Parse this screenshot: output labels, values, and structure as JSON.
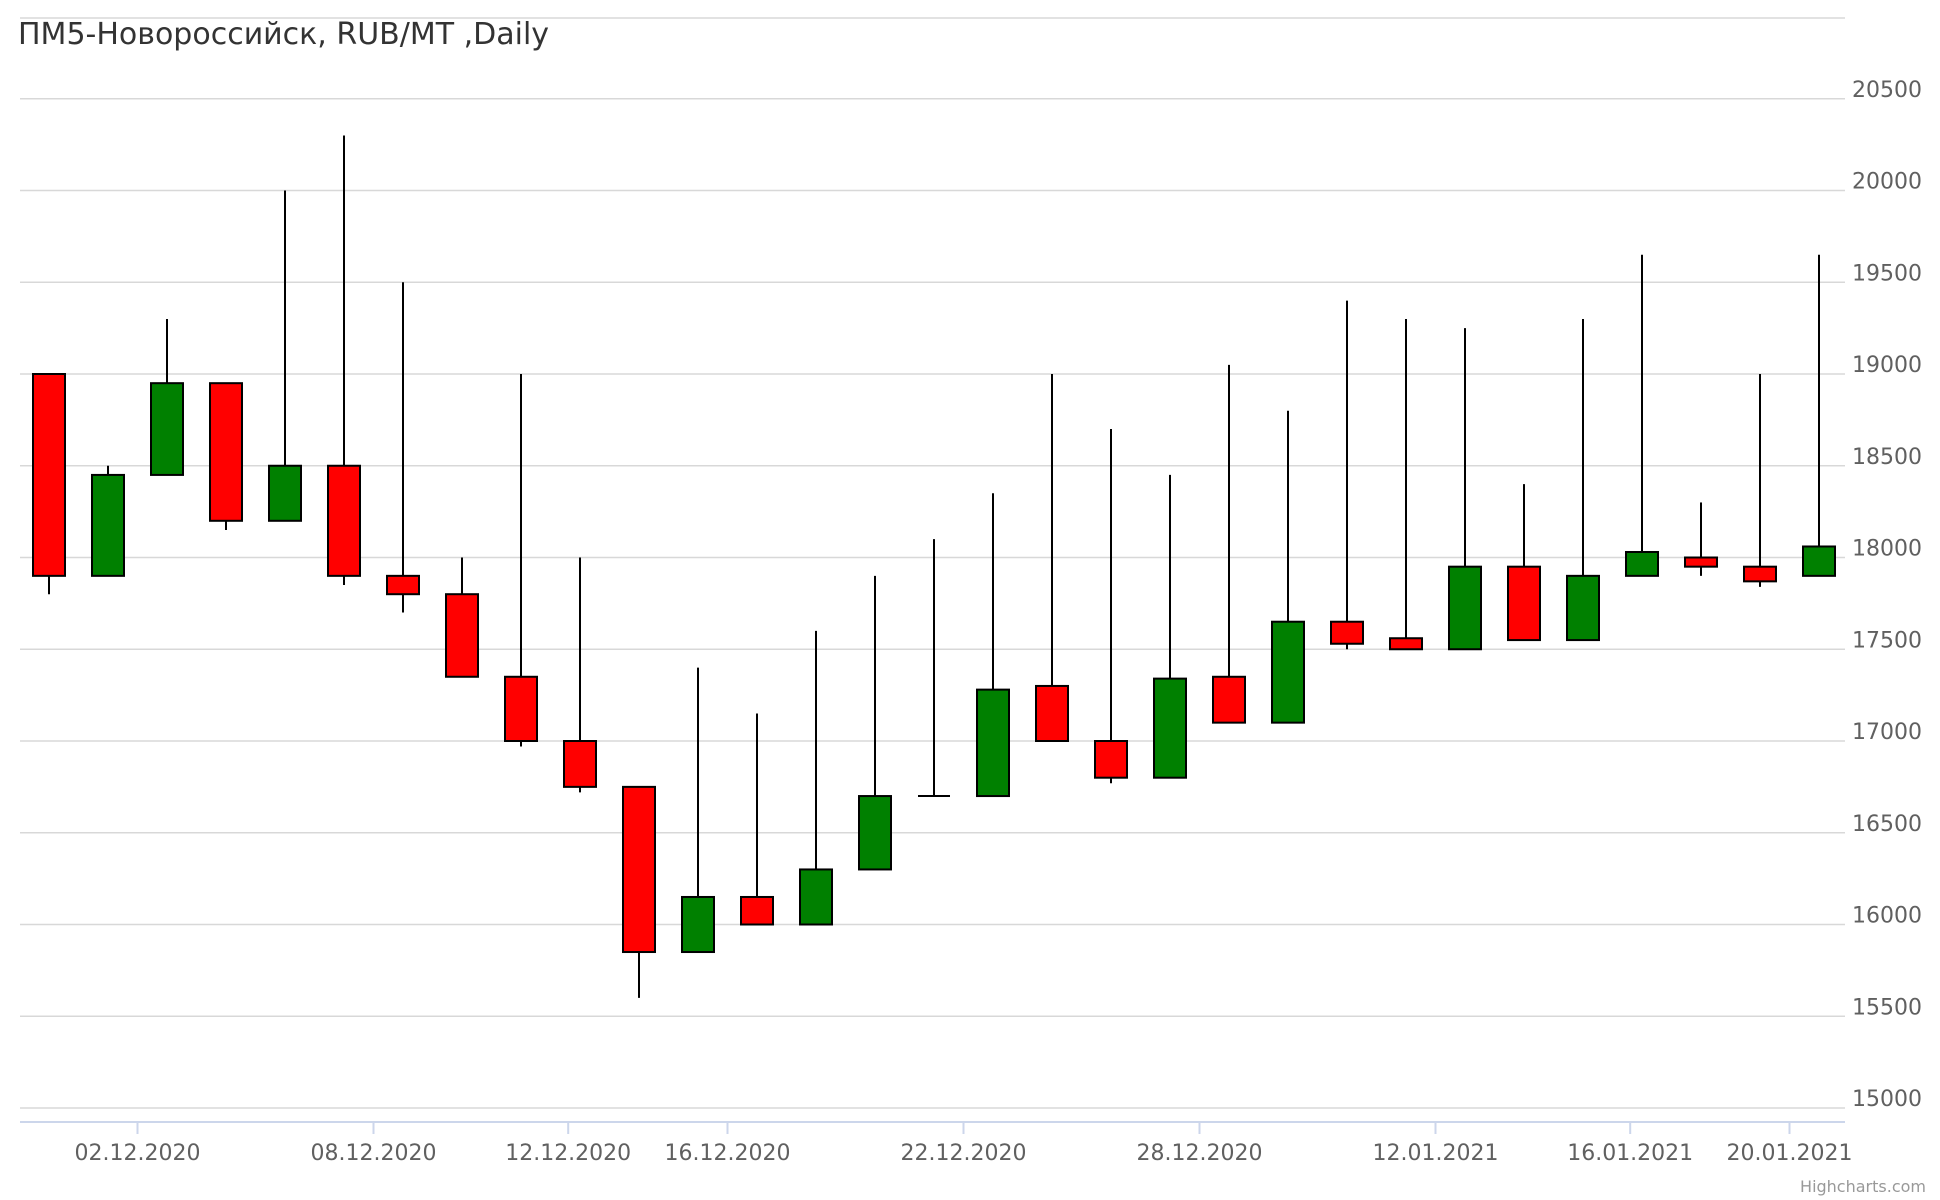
{
  "chart_data": {
    "type": "candlestick",
    "title": "ПМ5-Новороссийск, RUB/MT ,Daily",
    "xlabel": "",
    "ylabel": "",
    "ylim": [
      14950,
      20700
    ],
    "y_ticks": [
      15000,
      15500,
      16000,
      16500,
      17000,
      17500,
      18000,
      18500,
      19000,
      19500,
      20000,
      20500
    ],
    "x_tick_labels": [
      "02.12.2020",
      "08.12.2020",
      "12.12.2020",
      "16.12.2020",
      "22.12.2020",
      "28.12.2020",
      "12.01.2021",
      "16.01.2021",
      "20.01.2021"
    ],
    "x_tick_positions": [
      1.5,
      5.5,
      8.8,
      11.5,
      15.5,
      19.5,
      23.5,
      26.8,
      29.5
    ],
    "grid": true,
    "up_color": "#008000",
    "down_color": "#ff0000",
    "candles": [
      {
        "open": 19000,
        "high": 19000,
        "low": 17800,
        "close": 17900
      },
      {
        "open": 17900,
        "high": 18500,
        "low": 17900,
        "close": 18450
      },
      {
        "open": 18450,
        "high": 19300,
        "low": 18450,
        "close": 18950
      },
      {
        "open": 18950,
        "high": 18950,
        "low": 18150,
        "close": 18200
      },
      {
        "open": 18200,
        "high": 20000,
        "low": 18200,
        "close": 18500
      },
      {
        "open": 18500,
        "high": 20300,
        "low": 17850,
        "close": 17900
      },
      {
        "open": 17900,
        "high": 19500,
        "low": 17700,
        "close": 17800
      },
      {
        "open": 17800,
        "high": 18000,
        "low": 17350,
        "close": 17350
      },
      {
        "open": 17350,
        "high": 19000,
        "low": 16970,
        "close": 17000
      },
      {
        "open": 17000,
        "high": 18000,
        "low": 16720,
        "close": 16750
      },
      {
        "open": 16750,
        "high": 16750,
        "low": 15600,
        "close": 15850
      },
      {
        "open": 15850,
        "high": 17400,
        "low": 15850,
        "close": 16150
      },
      {
        "open": 16150,
        "high": 17150,
        "low": 16000,
        "close": 16000
      },
      {
        "open": 16000,
        "high": 17600,
        "low": 16000,
        "close": 16300
      },
      {
        "open": 16300,
        "high": 17900,
        "low": 16300,
        "close": 16700
      },
      {
        "open": 16700,
        "high": 18100,
        "low": 16700,
        "close": 16700
      },
      {
        "open": 16700,
        "high": 18350,
        "low": 16700,
        "close": 17280
      },
      {
        "open": 17300,
        "high": 19000,
        "low": 17000,
        "close": 17000
      },
      {
        "open": 17000,
        "high": 18700,
        "low": 16770,
        "close": 16800
      },
      {
        "open": 16800,
        "high": 18450,
        "low": 16800,
        "close": 17340
      },
      {
        "open": 17350,
        "high": 19050,
        "low": 17100,
        "close": 17100
      },
      {
        "open": 17100,
        "high": 18800,
        "low": 17100,
        "close": 17650
      },
      {
        "open": 17650,
        "high": 19400,
        "low": 17500,
        "close": 17530
      },
      {
        "open": 17560,
        "high": 19300,
        "low": 17500,
        "close": 17500
      },
      {
        "open": 17500,
        "high": 19250,
        "low": 17500,
        "close": 17950
      },
      {
        "open": 17950,
        "high": 18400,
        "low": 17550,
        "close": 17550
      },
      {
        "open": 17550,
        "high": 19300,
        "low": 17550,
        "close": 17900
      },
      {
        "open": 17900,
        "high": 19650,
        "low": 17900,
        "close": 18030
      },
      {
        "open": 18000,
        "high": 18300,
        "low": 17900,
        "close": 17950
      },
      {
        "open": 17950,
        "high": 19000,
        "low": 17840,
        "close": 17870
      },
      {
        "open": 17900,
        "high": 19650,
        "low": 17900,
        "close": 18060
      }
    ]
  },
  "credits": "Highcharts.com"
}
